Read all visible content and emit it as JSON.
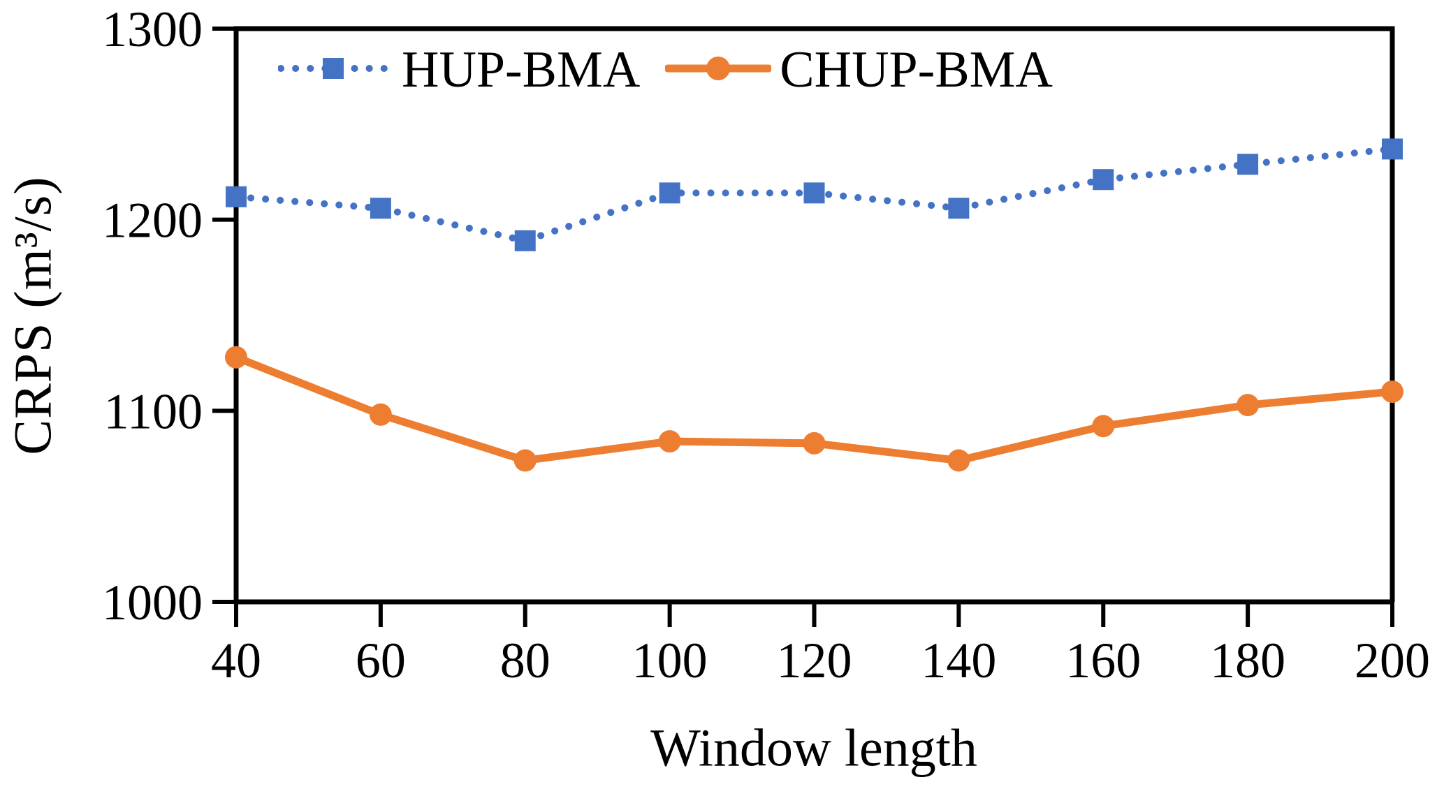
{
  "figure": {
    "background": "#ffffff",
    "axis_color": "#000000"
  },
  "chart_data": {
    "type": "line",
    "title": "",
    "xlabel": "Window length",
    "ylabel": "CRPS (m³/s)",
    "x": [
      40,
      60,
      80,
      100,
      120,
      140,
      160,
      180,
      200
    ],
    "x_ticks": [
      40,
      60,
      80,
      100,
      120,
      140,
      160,
      180,
      200
    ],
    "y_ticks": [
      1000,
      1100,
      1200,
      1300
    ],
    "xlim": [
      40,
      200
    ],
    "ylim": [
      1000,
      1300
    ],
    "grid": false,
    "legend_position": "top-inside",
    "series": [
      {
        "name": "HUP-BMA",
        "color": "#4472C4",
        "line_style": "dotted",
        "marker": "square",
        "values": [
          1212,
          1206,
          1189,
          1214,
          1214,
          1206,
          1221,
          1229,
          1237
        ]
      },
      {
        "name": "CHUP-BMA",
        "color": "#ED7D31",
        "line_style": "solid",
        "marker": "circle",
        "values": [
          1128,
          1098,
          1074,
          1084,
          1083,
          1074,
          1092,
          1103,
          1110
        ]
      }
    ]
  }
}
